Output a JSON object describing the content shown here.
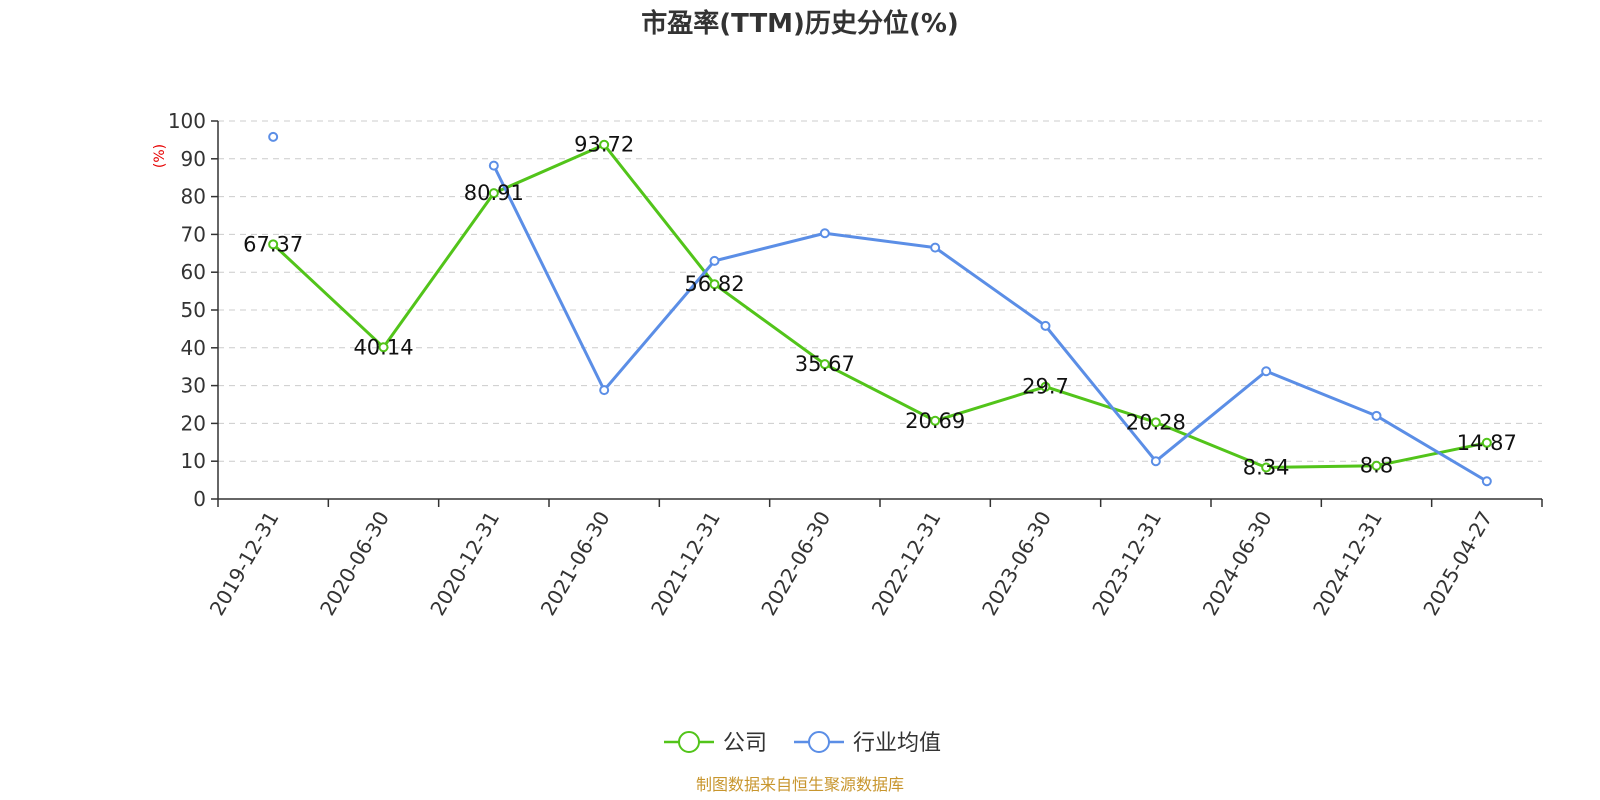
{
  "chart_data": {
    "type": "line",
    "title": "市盈率(TTM)历史分位(%)",
    "ylabel": "(%)",
    "ylim": [
      0,
      100
    ],
    "yticks": [
      0,
      10,
      20,
      30,
      40,
      50,
      60,
      70,
      80,
      90,
      100
    ],
    "grid": true,
    "legend_position": "bottom-center",
    "categories": [
      "2019-12-31",
      "2020-06-30",
      "2020-12-31",
      "2021-06-30",
      "2021-12-31",
      "2022-06-30",
      "2022-12-31",
      "2023-06-30",
      "2023-12-31",
      "2024-06-30",
      "2024-12-31",
      "2025-04-27"
    ],
    "series": [
      {
        "name": "公司",
        "color": "#52c41a",
        "values": [
          67.37,
          40.14,
          80.91,
          93.72,
          56.82,
          35.67,
          20.69,
          29.7,
          20.28,
          8.34,
          8.8,
          14.87
        ],
        "labels": [
          "67.37",
          "40.14",
          "80.91",
          "93.72",
          "56.82",
          "35.67",
          "20.69",
          "29.7",
          "20.28",
          "8.34",
          "8.8",
          "14.87"
        ]
      },
      {
        "name": "行业均值",
        "color": "#5b8ee6",
        "values": [
          95.8,
          null,
          88.2,
          28.8,
          63.0,
          70.3,
          66.5,
          45.8,
          10.0,
          33.8,
          22.0,
          4.7
        ]
      }
    ],
    "source": "制图数据来自恒生聚源数据库",
    "colors": {
      "unit": "#e60000",
      "source": "#c8962e",
      "axis": "#333333",
      "grid": "#cccccc"
    }
  }
}
